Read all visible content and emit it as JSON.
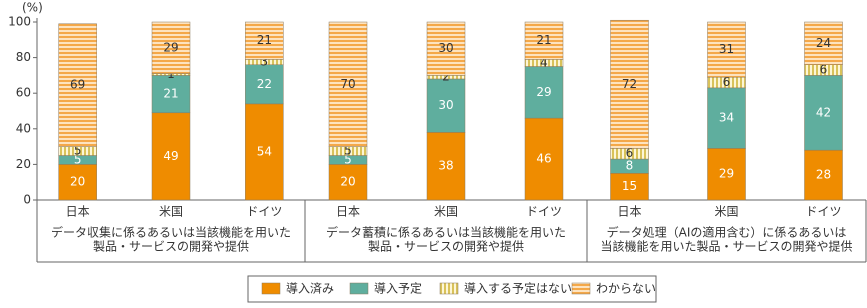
{
  "chart_data": {
    "type": "stacked_bar",
    "y_unit": "(%)",
    "ylim": [
      0,
      100
    ],
    "yticks": [
      0,
      20,
      40,
      60,
      80,
      100
    ],
    "categories": [
      "日本",
      "米国",
      "ドイツ",
      "日本",
      "米国",
      "ドイツ",
      "日本",
      "米国",
      "ドイツ"
    ],
    "groups": [
      [
        "データ収集に係るあるいは当該機能を用いた",
        "製品・サービスの開発や提供"
      ],
      [
        "データ蓄積に係るあるいは当該機能を用いた",
        "製品・サービスの開発や提供"
      ],
      [
        "データ処理（AIの適用含む）に係るあるいは",
        "当該機能を用いた製品・サービスの開発や提供"
      ]
    ],
    "series": [
      {
        "name": "導入済み",
        "color": "#ef8c00",
        "label_color": "#ffffff",
        "values": [
          20,
          49,
          54,
          20,
          38,
          46,
          15,
          29,
          28
        ]
      },
      {
        "name": "導入予定",
        "color": "#5fae9e",
        "label_color": "#ffffff",
        "values": [
          5,
          21,
          22,
          5,
          30,
          29,
          8,
          34,
          42
        ]
      },
      {
        "name": "導入する予定はない",
        "color": "#e4d27a",
        "label_color": "#333333",
        "pattern": "vertical",
        "values": [
          5,
          1,
          3,
          5,
          2,
          4,
          6,
          6,
          6
        ]
      },
      {
        "name": "わからない",
        "color": "#f6b35e",
        "label_color": "#333333",
        "pattern": "horizontal",
        "values": [
          69,
          29,
          21,
          70,
          30,
          21,
          72,
          31,
          24
        ]
      }
    ]
  }
}
